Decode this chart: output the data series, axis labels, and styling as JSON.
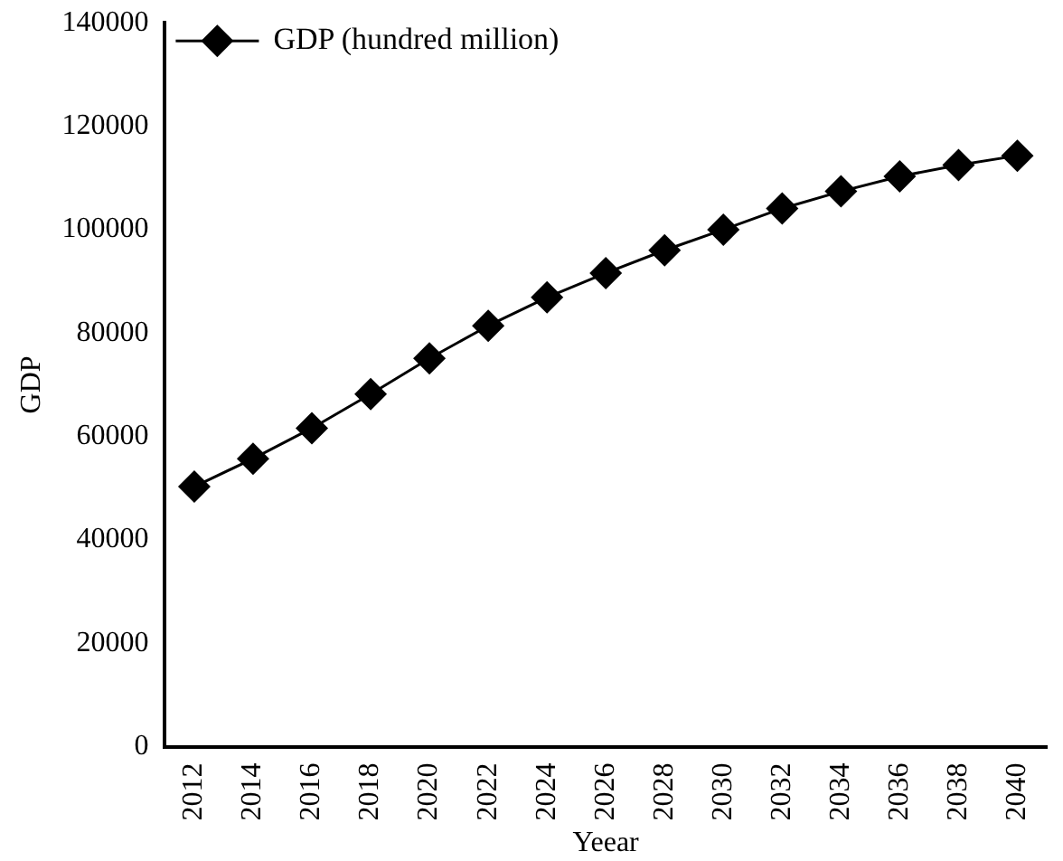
{
  "chart_data": {
    "type": "line",
    "xlabel": "Yeear",
    "ylabel": "GDP",
    "categories": [
      "2012",
      "2014",
      "2016",
      "2018",
      "2020",
      "2022",
      "2024",
      "2026",
      "2028",
      "2030",
      "2032",
      "2034",
      "2036",
      "2038",
      "2040"
    ],
    "series": [
      {
        "name": "GDP (hundred million)",
        "color": "#000000",
        "values": [
          50300,
          55700,
          61600,
          68200,
          75100,
          81400,
          86900,
          91600,
          96000,
          100000,
          104100,
          107400,
          110300,
          112500,
          114300
        ]
      }
    ],
    "ylim": [
      0,
      140000
    ],
    "yticks": [
      0,
      20000,
      40000,
      60000,
      80000,
      100000,
      120000,
      140000
    ],
    "grid": false,
    "legend": "top left",
    "marker": "diamond",
    "line_style": "solid"
  }
}
